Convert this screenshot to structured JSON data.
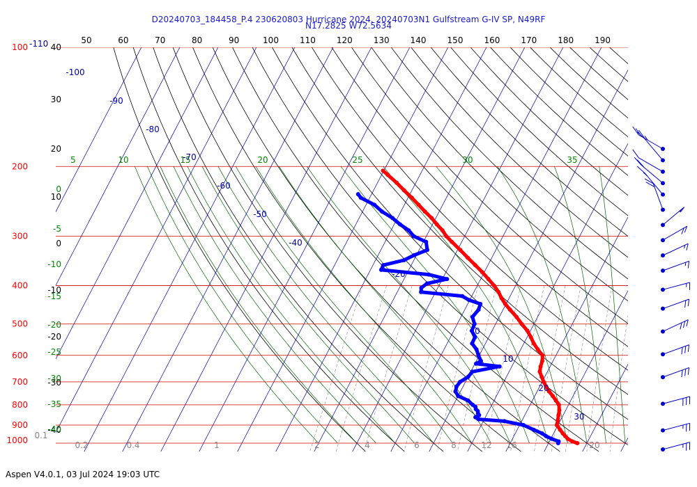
{
  "header": {
    "title_line1": "D20240703_184458_P.4 230620803 Hurricane 2024, 20240703N1 Gulfstream G-IV SP, N49RF",
    "title_line2": "N17.2825 W72.5634"
  },
  "footer": {
    "text": "Aspen V4.0.1, 03 Jul 2024  19:03 UTC"
  },
  "chart_data": {
    "type": "skew-t log-p sounding",
    "title": "D20240703_184458_P.4 230620803 Hurricane 2024, 20240703N1 Gulfstream G-IV SP, N49RF",
    "subtitle": "N17.2825 W72.5634",
    "grid": true,
    "colors": {
      "isobar": "#cc0000",
      "temperature": "#ff0000",
      "dewpoint": "#0000ff",
      "isotherm": "#0000aa",
      "dry_adiabat": "#000000",
      "moist_adiabat": "#006600",
      "mixing_ratio": "#888888",
      "pressure_label": "#ff0000",
      "height_label": "#000000",
      "moist_label": "#008800",
      "barb": "#0000cc"
    },
    "pressure_labels": [
      "100",
      "200",
      "300",
      "400",
      "500",
      "600",
      "700",
      "800",
      "900",
      "1000"
    ],
    "top_pressure_extra": "-110",
    "top_axis_labels": [
      "50",
      "60",
      "70",
      "80",
      "90",
      "100",
      "110",
      "120",
      "130",
      "140",
      "150",
      "160",
      "170",
      "180",
      "190"
    ],
    "height_labels": [
      "40",
      "30",
      "20",
      "10",
      "0",
      "-10",
      "-20",
      "-30",
      "-40"
    ],
    "moist_left_labels": [
      "0",
      "-5",
      "-10",
      "-15",
      "-20",
      "-25",
      "-30",
      "-35",
      "-40"
    ],
    "moist_top_labels": [
      "5",
      "10",
      "15",
      "20",
      "25",
      "30",
      "35"
    ],
    "isotherm_labels": [
      "-100",
      "-90",
      "-80",
      "-70",
      "-60",
      "-50",
      "-40",
      "-20",
      "0",
      "10",
      "20",
      "30"
    ],
    "mixing_ratio_labels": [
      "0.1",
      "0.2",
      "0.4",
      "1",
      "2",
      "4",
      "6",
      "8",
      "12",
      "16",
      "20",
      "40"
    ],
    "temperature_profile": [
      [
        1000,
        27.5
      ],
      [
        990,
        26.0
      ],
      [
        975,
        24.4
      ],
      [
        960,
        23.4
      ],
      [
        945,
        22.4
      ],
      [
        925,
        21.2
      ],
      [
        900,
        19.7
      ],
      [
        875,
        19.3
      ],
      [
        850,
        18.8
      ],
      [
        825,
        18.3
      ],
      [
        800,
        17.5
      ],
      [
        780,
        16.1
      ],
      [
        760,
        14.7
      ],
      [
        740,
        13.1
      ],
      [
        720,
        11.7
      ],
      [
        700,
        10.4
      ],
      [
        680,
        9.2
      ],
      [
        660,
        8.0
      ],
      [
        640,
        7.5
      ],
      [
        620,
        7.2
      ],
      [
        600,
        6.5
      ],
      [
        580,
        4.5
      ],
      [
        560,
        2.6
      ],
      [
        540,
        1.0
      ],
      [
        520,
        -0.8
      ],
      [
        500,
        -3.2
      ],
      [
        480,
        -5.5
      ],
      [
        460,
        -8.2
      ],
      [
        445,
        -10.2
      ],
      [
        430,
        -12.0
      ],
      [
        415,
        -13.6
      ],
      [
        400,
        -15.6
      ],
      [
        385,
        -18.0
      ],
      [
        370,
        -20.5
      ],
      [
        355,
        -23.3
      ],
      [
        340,
        -26.3
      ],
      [
        325,
        -29.3
      ],
      [
        310,
        -32.6
      ],
      [
        300,
        -34.8
      ],
      [
        290,
        -36.6
      ],
      [
        280,
        -38.9
      ],
      [
        270,
        -41.1
      ],
      [
        260,
        -43.7
      ],
      [
        250,
        -46.3
      ],
      [
        240,
        -49.0
      ],
      [
        230,
        -52.0
      ],
      [
        220,
        -55.0
      ],
      [
        210,
        -58.4
      ],
      [
        205,
        -60.2
      ]
    ],
    "dewpoint_profile": [
      [
        1000,
        22.5
      ],
      [
        990,
        22.4
      ],
      [
        975,
        20.2
      ],
      [
        960,
        18.4
      ],
      [
        945,
        17.0
      ],
      [
        925,
        14.3
      ],
      [
        900,
        11.0
      ],
      [
        880,
        5.5
      ],
      [
        870,
        -1.5
      ],
      [
        860,
        -2.6
      ],
      [
        850,
        -1.9
      ],
      [
        840,
        -2.5
      ],
      [
        830,
        -2.8
      ],
      [
        820,
        -3.6
      ],
      [
        810,
        -4.0
      ],
      [
        800,
        -5.0
      ],
      [
        780,
        -6.8
      ],
      [
        760,
        -10.0
      ],
      [
        740,
        -11.3
      ],
      [
        720,
        -11.7
      ],
      [
        700,
        -11.4
      ],
      [
        680,
        -10.0
      ],
      [
        660,
        -9.6
      ],
      [
        640,
        -3.2
      ],
      [
        630,
        -9.7
      ],
      [
        620,
        -8.8
      ],
      [
        600,
        -10.2
      ],
      [
        580,
        -11.5
      ],
      [
        560,
        -13.5
      ],
      [
        540,
        -13.6
      ],
      [
        520,
        -15.3
      ],
      [
        500,
        -15.5
      ],
      [
        480,
        -17.0
      ],
      [
        460,
        -16.4
      ],
      [
        445,
        -16.7
      ],
      [
        435,
        -20.2
      ],
      [
        425,
        -22.5
      ],
      [
        415,
        -33.8
      ],
      [
        405,
        -34.3
      ],
      [
        395,
        -33.4
      ],
      [
        385,
        -28.8
      ],
      [
        375,
        -34.2
      ],
      [
        365,
        -47.2
      ],
      [
        355,
        -47.3
      ],
      [
        345,
        -42.6
      ],
      [
        335,
        -40.6
      ],
      [
        325,
        -37.9
      ],
      [
        310,
        -39.3
      ],
      [
        300,
        -43.3
      ],
      [
        290,
        -45.4
      ],
      [
        280,
        -48.5
      ],
      [
        270,
        -51.3
      ],
      [
        260,
        -54.9
      ],
      [
        250,
        -57.8
      ],
      [
        240,
        -62.3
      ],
      [
        235,
        -63.5
      ]
    ],
    "wind_barbs": [
      {
        "p": "200",
        "speed_kt": 35,
        "dir_deg": 240
      },
      {
        "p": "230",
        "speed_kt": 10,
        "dir_deg": 220
      },
      {
        "p": "260",
        "speed_kt": 10,
        "dir_deg": 240
      },
      {
        "p": "290",
        "speed_kt": 20,
        "dir_deg": 230
      },
      {
        "p": "320",
        "speed_kt": 15,
        "dir_deg": 220
      },
      {
        "p": "360",
        "speed_kt": 20,
        "dir_deg": 200
      },
      {
        "p": "400",
        "speed_kt": 15,
        "dir_deg": 130
      },
      {
        "p": "440",
        "speed_kt": 20,
        "dir_deg": 120
      },
      {
        "p": "480",
        "speed_kt": 15,
        "dir_deg": 115
      },
      {
        "p": "520",
        "speed_kt": 15,
        "dir_deg": 110
      },
      {
        "p": "570",
        "speed_kt": 15,
        "dir_deg": 105
      },
      {
        "p": "620",
        "speed_kt": 20,
        "dir_deg": 110
      },
      {
        "p": "680",
        "speed_kt": 30,
        "dir_deg": 115
      },
      {
        "p": "740",
        "speed_kt": 30,
        "dir_deg": 110
      },
      {
        "p": "800",
        "speed_kt": 30,
        "dir_deg": 110
      },
      {
        "p": "870",
        "speed_kt": 30,
        "dir_deg": 105
      },
      {
        "p": "940",
        "speed_kt": 25,
        "dir_deg": 105
      },
      {
        "p": "990",
        "speed_kt": 25,
        "dir_deg": 105
      }
    ]
  }
}
